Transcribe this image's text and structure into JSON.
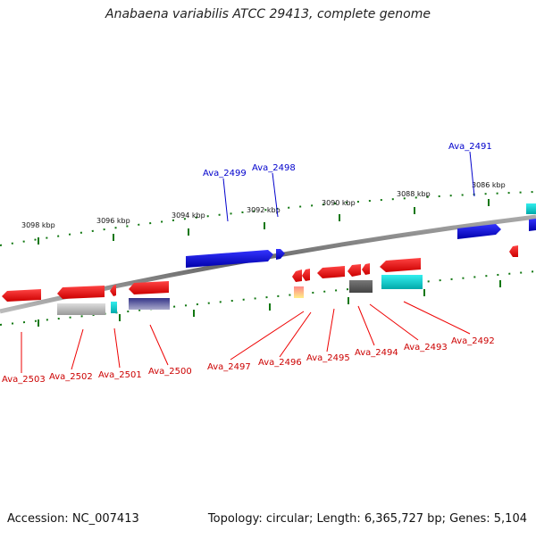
{
  "title": "Anabaena variabilis ATCC 29413, complete genome",
  "footer": {
    "accession": "Accession: NC_007413",
    "summary": "Topology: circular; Length: 6,365,727 bp; Genes: 5,104"
  },
  "ruler": {
    "unit": "kbp",
    "ticks": [
      "3098 kbp",
      "3096 kbp",
      "3094 kbp",
      "3092 kbp",
      "3090 kbp",
      "3088 kbp",
      "3086 kbp"
    ]
  },
  "colors": {
    "forward_strand": "#0000dd",
    "reverse_strand": "#ee0000",
    "ruler_tick": "#117711",
    "backbone": "#888888",
    "forward_label": "#0000cc",
    "reverse_label": "#cc0000"
  },
  "genes": {
    "forward": [
      "Ava_2499",
      "Ava_2498",
      "Ava_2491"
    ],
    "reverse": [
      "Ava_2503",
      "Ava_2502",
      "Ava_2501",
      "Ava_2500",
      "Ava_2497",
      "Ava_2496",
      "Ava_2495",
      "Ava_2494",
      "Ava_2493",
      "Ava_2492"
    ]
  }
}
